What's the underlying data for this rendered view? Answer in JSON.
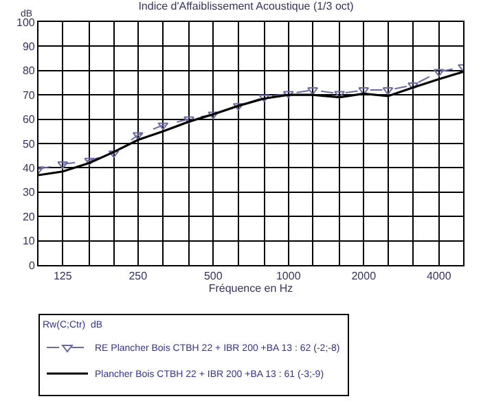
{
  "chart_data": {
    "type": "line",
    "title": "Indice d'Affaiblissement Acoustique (1/3 oct)",
    "xlabel": "Fréquence en Hz",
    "ylabel": "dB",
    "legend_title": "Rw(C;Ctr)  dB",
    "x": [
      100,
      125,
      160,
      200,
      250,
      315,
      400,
      500,
      630,
      800,
      1000,
      1250,
      1600,
      2000,
      2500,
      3150,
      4000,
      5000
    ],
    "series": [
      {
        "name": "RE Plancher Bois CTBH 22 + IBR 200 +BA 13 : 62 (-2;-8)",
        "color": "#6a6aa8",
        "marker": "triangle",
        "line_style": "dashed",
        "values": [
          39.5,
          41.5,
          43,
          46,
          53.5,
          57.5,
          60,
          62,
          65.5,
          69,
          70.5,
          72,
          70.5,
          72,
          72,
          74,
          79.5,
          81.5
        ]
      },
      {
        "name": "Plancher Bois CTBH 22 + IBR 200 +BA 13 : 61 (-3;-9)",
        "color": "#000000",
        "marker": "none",
        "line_style": "solid",
        "values": [
          37,
          38.5,
          42,
          46.5,
          51.5,
          55,
          59,
          62,
          65.5,
          68.5,
          70,
          70,
          69,
          70.5,
          69.5,
          73,
          76.5,
          79.5
        ]
      }
    ],
    "log": "x",
    "xlim": [
      100,
      5000
    ],
    "xticks": [
      {
        "value": 100,
        "label": null
      },
      125,
      {
        "value": 160,
        "label": null
      },
      {
        "value": 200,
        "label": null
      },
      250,
      {
        "value": 315,
        "label": null
      },
      {
        "value": 400,
        "label": null
      },
      500,
      {
        "value": 630,
        "label": null
      },
      {
        "value": 800,
        "label": null
      },
      1000,
      {
        "value": 1250,
        "label": null
      },
      {
        "value": 1600,
        "label": null
      },
      2000,
      {
        "value": 2500,
        "label": null
      },
      {
        "value": 3150,
        "label": null
      },
      4000,
      {
        "value": 5000,
        "label": null
      }
    ],
    "ylim": [
      0,
      100
    ],
    "yticks": [
      0,
      10,
      20,
      30,
      40,
      50,
      60,
      70,
      80,
      90,
      100
    ],
    "grid": true,
    "legend": "bottom"
  }
}
